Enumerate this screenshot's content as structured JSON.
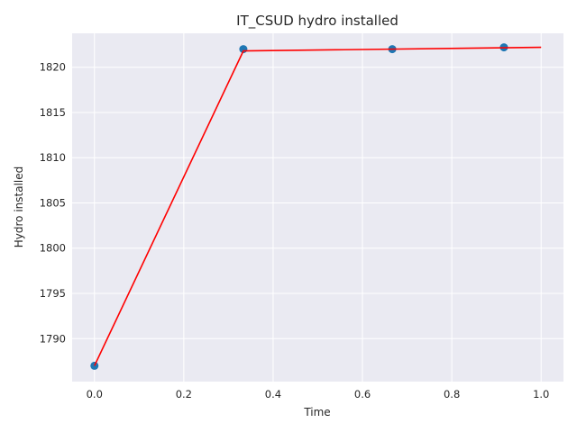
{
  "chart_data": {
    "type": "line",
    "title": "IT_CSUD hydro installed",
    "xlabel": "Time",
    "ylabel": "Hydro installed",
    "xlim": [
      -0.05,
      1.05
    ],
    "ylim": [
      1785.25,
      1823.75
    ],
    "x_ticks": [
      0.0,
      0.2,
      0.4,
      0.6,
      0.8,
      1.0
    ],
    "x_tick_labels": [
      "0.0",
      "0.2",
      "0.4",
      "0.6",
      "0.8",
      "1.0"
    ],
    "y_ticks": [
      1790,
      1795,
      1800,
      1805,
      1810,
      1815,
      1820
    ],
    "y_tick_labels": [
      "1790",
      "1795",
      "1800",
      "1805",
      "1810",
      "1815",
      "1820"
    ],
    "grid": true,
    "background": "#eaeaf2",
    "series": [
      {
        "kind": "scatter",
        "color": "#1f77b4",
        "x": [
          0.0,
          0.3333,
          0.6667,
          0.9167
        ],
        "y": [
          1787.0,
          1822.0,
          1822.0,
          1822.2
        ]
      },
      {
        "kind": "line",
        "color": "#ff0000",
        "x": [
          0.0,
          0.3333,
          1.0
        ],
        "y": [
          1787.0,
          1821.8,
          1822.2
        ]
      }
    ]
  }
}
